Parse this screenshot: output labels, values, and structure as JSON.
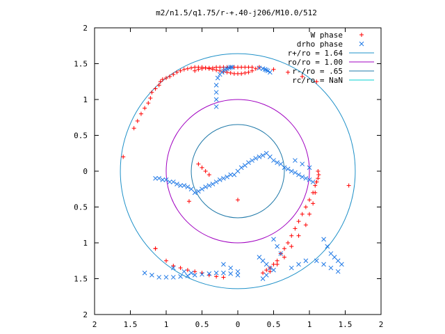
{
  "chart_data": {
    "type": "scatter",
    "title": "m2/n1.5/q1.75/r-+.40-j206/M10.0/512",
    "xlim": [
      -2,
      2
    ],
    "ylim": [
      -2,
      2
    ],
    "x_ticks": [
      "2",
      "1.5",
      "1",
      "0.5",
      "0",
      "0.5",
      "1",
      "1.5",
      "2"
    ],
    "y_ticks": [
      "2",
      "1.5",
      "1",
      "0.5",
      "0",
      "0.5",
      "1",
      "1.5",
      "2"
    ],
    "legend_position": "top-right",
    "grid": false,
    "series": [
      {
        "name": "W phase",
        "kind": "points",
        "marker": "plus",
        "color": "#ff0000",
        "x": [
          -1.6,
          -1.45,
          -1.4,
          -1.35,
          -1.3,
          -1.25,
          -1.22,
          -1.2,
          -1.15,
          -1.1,
          -1.08,
          -1.05,
          -1.0,
          -0.95,
          -0.9,
          -0.85,
          -0.8,
          -0.75,
          -0.7,
          -0.65,
          -0.6,
          -0.55,
          -0.5,
          -0.45,
          -0.4,
          -0.35,
          -0.3,
          -0.25,
          -0.2,
          -0.15,
          -0.1,
          -0.05,
          0.0,
          0.05,
          0.1,
          0.15,
          0.2,
          0.25,
          0.3,
          -0.6,
          -0.55,
          -0.5,
          -0.45,
          -0.4,
          -0.35,
          -0.3,
          -0.25,
          -0.2,
          -0.15,
          -0.1,
          -0.05,
          0.0,
          0.05,
          0.1,
          0.15,
          0.2,
          0.3,
          0.5,
          0.7,
          0.9,
          1.1,
          -1.15,
          -1.0,
          -0.9,
          -0.8,
          -0.7,
          -0.6,
          -0.5,
          -0.4,
          -0.3,
          -0.2,
          0.45,
          0.55,
          0.65,
          0.75,
          0.85,
          0.95,
          1.0,
          1.05,
          1.08,
          1.1,
          1.12,
          1.13,
          1.12,
          1.1,
          1.08,
          1.05,
          1.0,
          0.95,
          0.9,
          0.85,
          0.8,
          0.75,
          0.7,
          0.65,
          0.6,
          0.55,
          0.5,
          0.45,
          0.4,
          0.35,
          -0.55,
          -0.5,
          -0.45,
          -0.4,
          0.0,
          1.55,
          -1.15,
          -0.68
        ],
        "y": [
          0.2,
          0.6,
          0.7,
          0.8,
          0.88,
          0.95,
          1.02,
          1.1,
          1.15,
          1.2,
          1.25,
          1.28,
          1.3,
          1.32,
          1.35,
          1.38,
          1.4,
          1.42,
          1.43,
          1.44,
          1.45,
          1.45,
          1.45,
          1.44,
          1.43,
          1.42,
          1.41,
          1.4,
          1.39,
          1.38,
          1.37,
          1.36,
          1.36,
          1.36,
          1.37,
          1.38,
          1.4,
          1.43,
          1.45,
          1.4,
          1.42,
          1.43,
          1.44,
          1.44,
          1.44,
          1.45,
          1.45,
          1.45,
          1.45,
          1.45,
          1.45,
          1.45,
          1.45,
          1.45,
          1.45,
          1.45,
          1.45,
          1.42,
          1.38,
          1.32,
          1.25,
          -1.08,
          -1.25,
          -1.32,
          -1.35,
          -1.38,
          -1.4,
          -1.42,
          -1.45,
          -1.47,
          -1.48,
          -1.4,
          -1.3,
          -1.2,
          -1.05,
          -0.9,
          -0.75,
          -0.6,
          -0.45,
          -0.3,
          -0.15,
          0.0,
          -0.05,
          -0.1,
          -0.15,
          -0.2,
          -0.3,
          -0.4,
          -0.5,
          -0.6,
          -0.7,
          -0.8,
          -0.9,
          -1.0,
          -1.08,
          -1.15,
          -1.25,
          -1.3,
          -1.35,
          -1.38,
          -1.42,
          0.1,
          0.05,
          0.0,
          -0.05,
          -0.4,
          -0.2,
          -1.08,
          -0.42
        ]
      },
      {
        "name": "drho phase",
        "kind": "points",
        "marker": "cross",
        "color": "#1e78e6",
        "x": [
          -1.15,
          -1.1,
          -1.05,
          -1.0,
          -0.95,
          -0.9,
          -0.85,
          -0.8,
          -0.75,
          -0.7,
          -0.65,
          -0.6,
          -0.55,
          -0.5,
          -0.45,
          -0.4,
          -0.35,
          -0.3,
          -0.25,
          -0.2,
          -0.15,
          -0.1,
          -0.05,
          0.0,
          0.05,
          0.1,
          0.15,
          0.2,
          0.25,
          0.3,
          0.35,
          0.4,
          0.45,
          0.5,
          0.55,
          0.6,
          0.65,
          0.7,
          0.75,
          0.8,
          0.85,
          0.9,
          0.95,
          1.0,
          1.05,
          -0.3,
          -0.3,
          -0.3,
          -0.3,
          -0.28,
          -0.25,
          -0.22,
          -0.2,
          -0.18,
          -0.15,
          -0.12,
          -0.1,
          -0.08,
          0.3,
          0.35,
          0.38,
          0.4,
          0.42,
          0.45,
          -0.2,
          -0.1,
          0.0,
          1.2,
          1.25,
          1.3,
          1.35,
          1.4,
          1.45,
          0.8,
          0.9,
          1.0,
          0.5,
          0.55,
          0.6,
          -1.3,
          -1.2,
          -1.1,
          -1.0,
          -0.9,
          -0.8,
          -0.7,
          -0.6,
          -0.5,
          -0.4,
          -0.3,
          -0.2,
          -0.1,
          0.0,
          0.3,
          0.35,
          0.4,
          0.45,
          0.5,
          1.1,
          1.2,
          1.3,
          1.4,
          -0.9,
          -0.75,
          -0.65,
          0.35,
          0.4,
          0.75,
          0.85,
          0.95
        ],
        "y": [
          -0.1,
          -0.1,
          -0.12,
          -0.12,
          -0.15,
          -0.15,
          -0.18,
          -0.2,
          -0.2,
          -0.22,
          -0.25,
          -0.3,
          -0.28,
          -0.25,
          -0.22,
          -0.2,
          -0.18,
          -0.15,
          -0.12,
          -0.1,
          -0.08,
          -0.05,
          -0.05,
          0.0,
          0.05,
          0.08,
          0.12,
          0.15,
          0.18,
          0.2,
          0.22,
          0.25,
          0.2,
          0.15,
          0.12,
          0.1,
          0.05,
          0.03,
          0.0,
          -0.02,
          -0.05,
          -0.08,
          -0.1,
          -0.12,
          -0.15,
          0.9,
          1.0,
          1.1,
          1.2,
          1.3,
          1.35,
          1.38,
          1.4,
          1.42,
          1.43,
          1.44,
          1.45,
          1.45,
          1.44,
          1.43,
          1.42,
          1.41,
          1.4,
          1.38,
          -1.3,
          -1.35,
          -1.4,
          -0.95,
          -1.05,
          -1.15,
          -1.2,
          -1.25,
          -1.3,
          0.15,
          0.1,
          0.05,
          -0.95,
          -1.05,
          -1.15,
          -1.42,
          -1.45,
          -1.48,
          -1.48,
          -1.48,
          -1.47,
          -1.46,
          -1.45,
          -1.44,
          -1.43,
          -1.42,
          -1.42,
          -1.43,
          -1.45,
          -1.2,
          -1.25,
          -1.3,
          -1.35,
          -1.38,
          -1.25,
          -1.3,
          -1.35,
          -1.4,
          -1.35,
          -1.4,
          -1.42,
          -1.5,
          -1.45,
          -1.35,
          -1.3,
          -1.25
        ]
      },
      {
        "name": "r+/ro = 1.64",
        "kind": "circle",
        "radius": 1.64,
        "color": "#1e90c8"
      },
      {
        "name": "ro/ro = 1.00",
        "kind": "circle",
        "radius": 1.0,
        "color": "#a000c0"
      },
      {
        "name": "r-/ro = .65",
        "kind": "circle",
        "radius": 0.65,
        "color": "#1e78a8"
      },
      {
        "name": "rc/ro = NaN",
        "kind": "circle",
        "radius": null,
        "color": "#00d0d0"
      }
    ]
  }
}
